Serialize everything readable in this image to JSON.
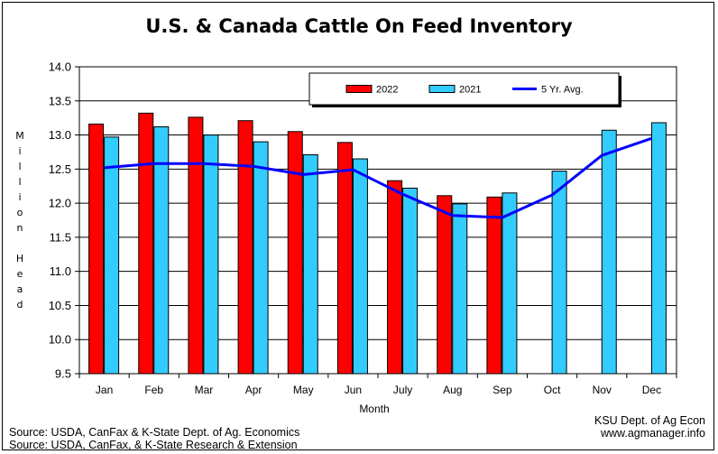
{
  "title": "U.S. & Canada Cattle On Feed Inventory",
  "ylabel_letters": [
    "M",
    "i",
    "l",
    "l",
    "i",
    "o",
    "n",
    "",
    "H",
    "e",
    "a",
    "d"
  ],
  "xlabel": "Month",
  "source_lines": [
    "Source: USDA, CanFax & K-State Dept. of  Ag. Economics",
    "Source: USDA, CanFax, & K-State Research & Extension"
  ],
  "credit_lines": [
    "KSU Dept. of Ag Econ",
    "www.agmanager.info"
  ],
  "chart_data": {
    "type": "bar",
    "title": "U.S. & Canada Cattle On Feed Inventory",
    "xlabel": "Month",
    "ylabel": "Million Head",
    "ylim": [
      9.5,
      14.0
    ],
    "ytick_step": 0.5,
    "grid": true,
    "legend_position": "top-right",
    "categories": [
      "Jan",
      "Feb",
      "Mar",
      "Apr",
      "May",
      "Jun",
      "July",
      "Aug",
      "Sep",
      "Oct",
      "Nov",
      "Dec"
    ],
    "series": [
      {
        "name": "2022",
        "kind": "bar",
        "color": "#ff0000",
        "values": [
          13.16,
          13.32,
          13.26,
          13.21,
          13.05,
          12.89,
          12.33,
          12.11,
          12.09,
          null,
          null,
          null
        ]
      },
      {
        "name": "2021",
        "kind": "bar",
        "color": "#33ccff",
        "values": [
          12.97,
          13.12,
          13.0,
          12.9,
          12.71,
          12.65,
          12.22,
          11.99,
          12.15,
          12.47,
          13.07,
          13.18
        ]
      },
      {
        "name": "5 Yr. Avg.",
        "kind": "line",
        "color": "#0000ff",
        "values": [
          12.52,
          12.58,
          12.58,
          12.54,
          12.42,
          12.49,
          12.13,
          11.82,
          11.79,
          12.12,
          12.7,
          12.95
        ]
      }
    ]
  }
}
